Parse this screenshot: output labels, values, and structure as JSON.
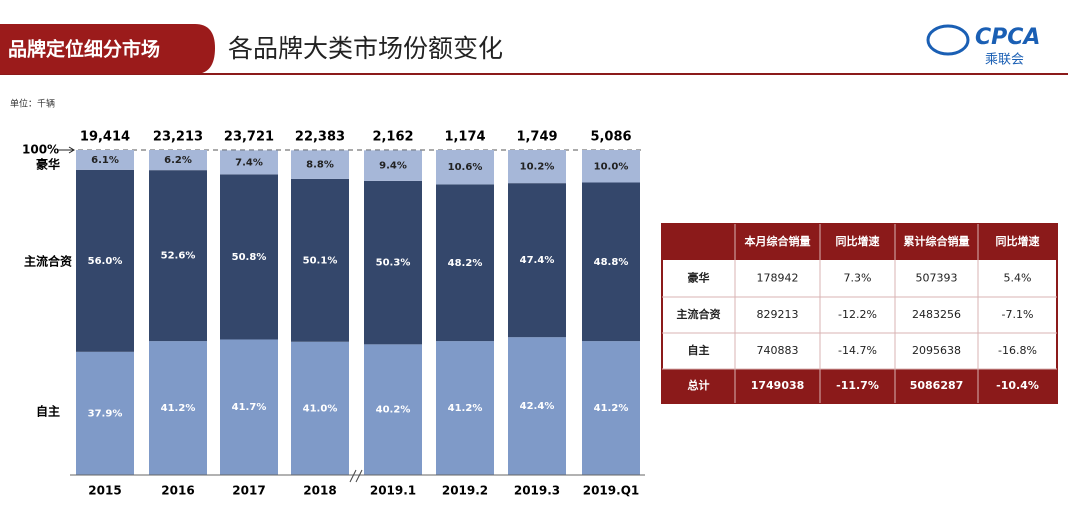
{
  "header": {
    "section": "品牌定位细分市场",
    "title": "各品牌大类市场份额变化",
    "logo": "CPCA",
    "logo_sub": "乘联会"
  },
  "chart_data": {
    "type": "stacked_bar",
    "unit": "单位：千辆",
    "categories": [
      "2015",
      "2016",
      "2017",
      "2018",
      "2019.1",
      "2019.2",
      "2019.3",
      "2019.Q1"
    ],
    "series": [
      {
        "name": "自主",
        "color": "#7f9ac8",
        "values": [
          37.9,
          41.2,
          41.7,
          41.0,
          40.2,
          41.2,
          42.4,
          41.2
        ],
        "value_labels": [
          "37.9%",
          "41.2%",
          "41.7%",
          "41.0%",
          "40.2%",
          "41.2%",
          "42.4%",
          "41.2%"
        ]
      },
      {
        "name": "主流合资",
        "color": "#34476b",
        "values": [
          56.0,
          52.6,
          50.8,
          50.1,
          50.3,
          48.2,
          47.4,
          48.8
        ],
        "value_labels": [
          "56.0%",
          "52.6%",
          "50.8%",
          "50.1%",
          "50.3%",
          "48.2%",
          "47.4%",
          "48.8%"
        ]
      },
      {
        "name": "豪华",
        "color": "#a6b7d8",
        "values": [
          6.1,
          6.2,
          7.4,
          8.8,
          9.4,
          10.6,
          10.2,
          10.0
        ],
        "value_labels": [
          "6.1%",
          "6.2%",
          "7.4%",
          "8.8%",
          "9.4%",
          "10.6%",
          "10.2%",
          "10.0%"
        ]
      }
    ],
    "totals": {
      "values": [
        19414,
        23213,
        23721,
        22383,
        2162,
        1174,
        1749,
        5086
      ],
      "value_labels": [
        "19,414",
        "23,213",
        "23,721",
        "22,383",
        "2,162",
        "1,174",
        "1,749",
        "5,086"
      ]
    },
    "ylim": [
      0,
      100
    ],
    "yticks": [
      {
        "value": 100,
        "label": "100%"
      }
    ]
  },
  "table": {
    "header": [
      "本月综合销量",
      "同比增速",
      "累计综合销量",
      "同比增速"
    ],
    "rows": [
      [
        "豪华",
        "178942",
        "7.3%",
        "507393",
        "5.4%"
      ],
      [
        "主流合资",
        "829213",
        "-12.2%",
        "2483256",
        "-7.1%"
      ],
      [
        "自主",
        "740883",
        "-14.7%",
        "2095638",
        "-16.8%"
      ],
      [
        "总计",
        "1749038",
        "-11.7%",
        "5086287",
        "-10.4%"
      ]
    ]
  }
}
